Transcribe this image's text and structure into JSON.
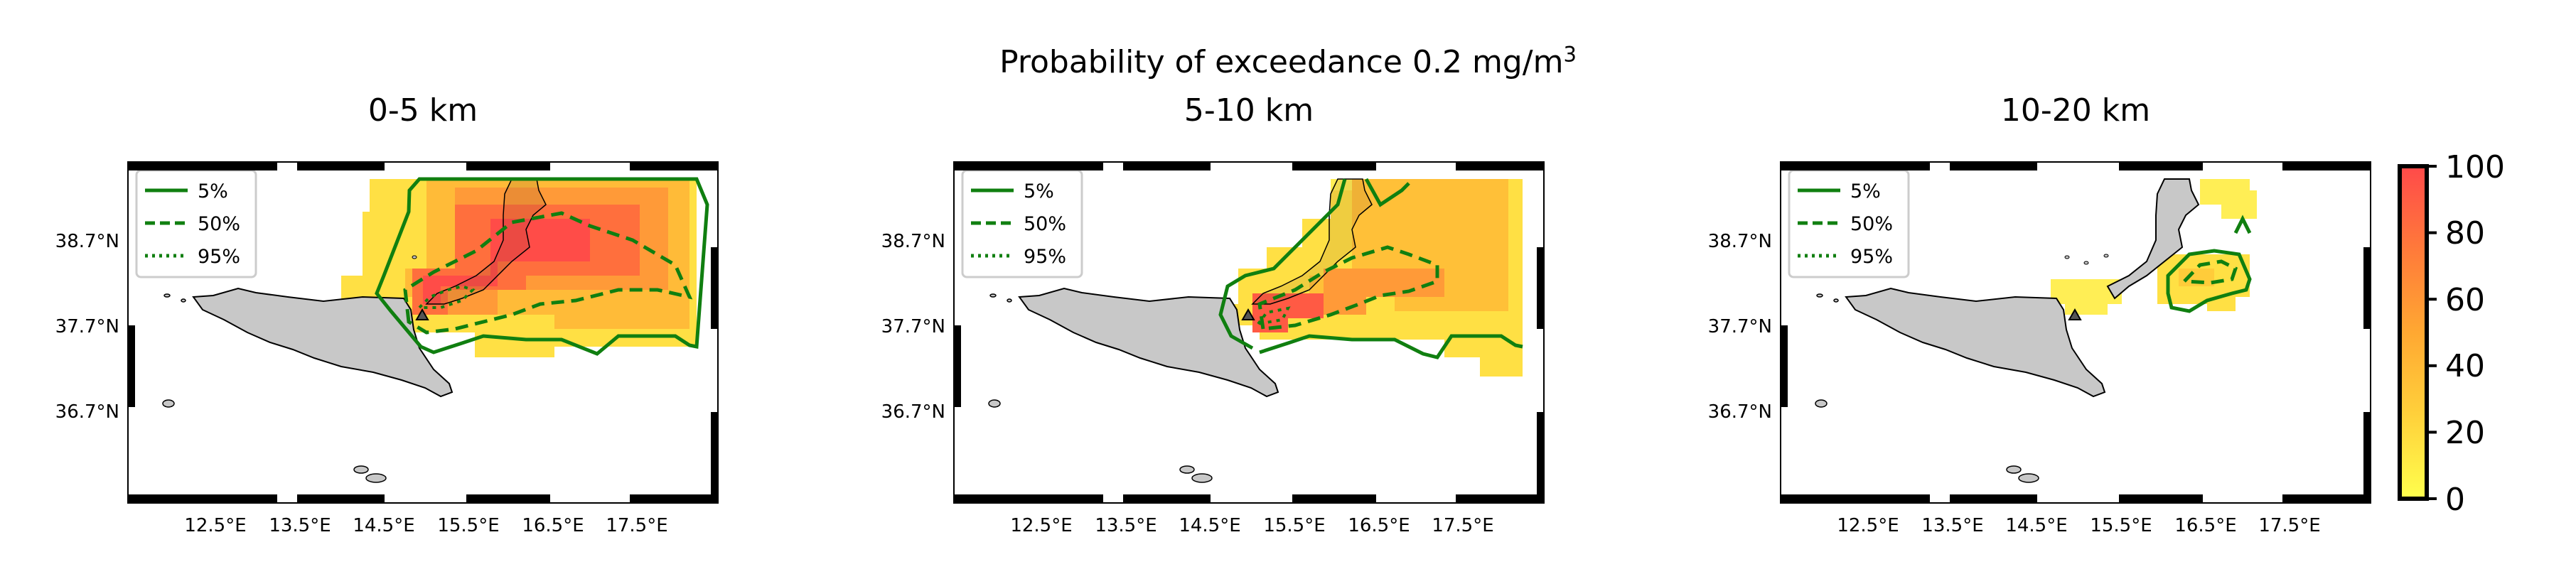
{
  "figure": {
    "suptitle_text": "Probability of exceedance 0.2 mg/m",
    "suptitle_sup": "3"
  },
  "panels": [
    {
      "title": "0-5 km"
    },
    {
      "title": "5-10 km"
    },
    {
      "title": "10-20 km"
    }
  ],
  "axes": {
    "lat_ticks": [
      "38.7°N",
      "37.7°N",
      "36.7°N"
    ],
    "lon_ticks": [
      "12.5°E",
      "13.5°E",
      "14.5°E",
      "15.5°E",
      "16.5°E",
      "17.5°E"
    ]
  },
  "legend": [
    {
      "label": "5%",
      "style": "solid"
    },
    {
      "label": "50%",
      "style": "dashed"
    },
    {
      "label": "95%",
      "style": "dotted"
    }
  ],
  "colorbar": {
    "ticks": [
      "100",
      "80",
      "60",
      "40",
      "20",
      "0"
    ],
    "colors": [
      "#ffff4d",
      "#ffd13b",
      "#ffa832",
      "#ff7a3a",
      "#ff4a4a"
    ]
  },
  "colors": {
    "contour": "#107f10",
    "land": "#c8c8c8",
    "vent_marker": "#555555"
  }
}
